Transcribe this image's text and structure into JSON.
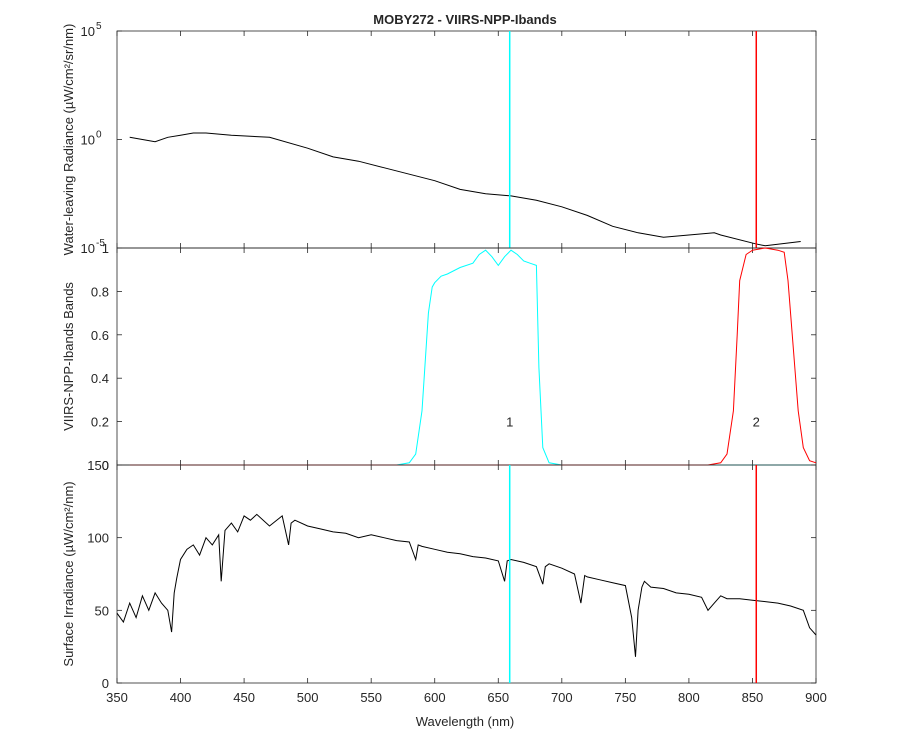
{
  "figure": {
    "title": "MOBY272 - VIIRS-NPP-Ibands",
    "xlabel": "Wavelength (nm)",
    "xticks": [
      350,
      400,
      450,
      500,
      550,
      600,
      650,
      700,
      750,
      800,
      850,
      900
    ],
    "xlim": [
      350,
      900
    ]
  },
  "chart_data": [
    {
      "type": "line",
      "panel": "top",
      "ylabel": "Water-leaving Radiance (µW/cm²/sr/nm)",
      "yscale": "log",
      "ylim_exponents": [
        -5,
        5
      ],
      "ytick_labels": [
        {
          "base": "10",
          "exp": "5",
          "value_exp": 5
        },
        {
          "base": "10",
          "exp": "0",
          "value_exp": 0
        },
        {
          "base": "10",
          "exp": "-5",
          "value_exp": -5
        }
      ],
      "series": [
        {
          "color": "#000000",
          "x": [
            360,
            370,
            380,
            390,
            400,
            410,
            420,
            440,
            470,
            500,
            520,
            540,
            560,
            580,
            600,
            620,
            640,
            660,
            680,
            700,
            720,
            740,
            760,
            780,
            800,
            820,
            825,
            852,
            860,
            888
          ],
          "y_exp": [
            0.1,
            0.0,
            -0.1,
            0.1,
            0.2,
            0.3,
            0.3,
            0.2,
            0.1,
            -0.4,
            -0.8,
            -1.0,
            -1.3,
            -1.6,
            -1.9,
            -2.3,
            -2.5,
            -2.6,
            -2.8,
            -3.1,
            -3.5,
            -4.0,
            -4.3,
            -4.5,
            -4.4,
            -4.3,
            -4.4,
            -4.8,
            -4.9,
            -4.7
          ]
        }
      ],
      "vlines": [
        {
          "x": 659,
          "color": "#00FFFF"
        },
        {
          "x": 853,
          "color": "#FF0000"
        }
      ]
    },
    {
      "type": "line",
      "panel": "middle",
      "ylabel": "VIIRS-NPP-Ibands Bands",
      "ylim": [
        0,
        1
      ],
      "yticks": [
        0,
        0.2,
        0.4,
        0.6,
        0.8,
        1
      ],
      "ytick_labels": [
        "0",
        "0.2",
        "0.4",
        "0.6",
        "0.8",
        "1"
      ],
      "series": [
        {
          "color": "#00FFFF",
          "x": [
            360,
            570,
            580,
            585,
            590,
            595,
            598,
            600,
            605,
            610,
            620,
            630,
            635,
            640,
            645,
            650,
            655,
            660,
            665,
            670,
            675,
            680,
            682,
            685,
            690,
            700,
            900
          ],
          "y": [
            0,
            0,
            0.01,
            0.05,
            0.25,
            0.7,
            0.82,
            0.84,
            0.87,
            0.88,
            0.91,
            0.93,
            0.97,
            0.99,
            0.96,
            0.92,
            0.96,
            0.99,
            0.97,
            0.94,
            0.93,
            0.92,
            0.45,
            0.08,
            0.01,
            0,
            0
          ]
        },
        {
          "color": "#FF0000",
          "x": [
            360,
            815,
            825,
            830,
            835,
            838,
            840,
            845,
            850,
            860,
            870,
            875,
            878,
            882,
            886,
            890,
            895,
            900
          ],
          "y": [
            0,
            0,
            0.01,
            0.05,
            0.25,
            0.6,
            0.85,
            0.97,
            0.99,
            1.0,
            0.99,
            0.98,
            0.85,
            0.55,
            0.25,
            0.08,
            0.02,
            0.01
          ]
        }
      ],
      "annotations": [
        {
          "text": "1",
          "x": 659,
          "y": 0.2
        },
        {
          "text": "2",
          "x": 853,
          "y": 0.2
        }
      ]
    },
    {
      "type": "line",
      "panel": "bottom",
      "ylabel": "Surface Irradiance (µW/cm²/nm)",
      "ylim": [
        0,
        150
      ],
      "yticks": [
        0,
        50,
        100,
        150
      ],
      "ytick_labels": [
        "0",
        "50",
        "100",
        "150"
      ],
      "series": [
        {
          "color": "#000000",
          "x": [
            350,
            355,
            360,
            365,
            370,
            375,
            380,
            385,
            390,
            393,
            395,
            397,
            400,
            405,
            410,
            415,
            420,
            425,
            430,
            432,
            435,
            440,
            445,
            450,
            455,
            460,
            470,
            480,
            485,
            487,
            490,
            500,
            510,
            520,
            530,
            540,
            550,
            560,
            570,
            580,
            585,
            587,
            590,
            600,
            610,
            620,
            630,
            640,
            650,
            655,
            657,
            660,
            670,
            680,
            685,
            687,
            690,
            700,
            710,
            715,
            718,
            720,
            730,
            740,
            750,
            755,
            758,
            760,
            763,
            765,
            770,
            780,
            790,
            800,
            810,
            815,
            820,
            825,
            830,
            840,
            850,
            860,
            870,
            880,
            890,
            895,
            900
          ],
          "y": [
            48,
            42,
            55,
            45,
            60,
            50,
            62,
            55,
            50,
            35,
            62,
            72,
            85,
            92,
            95,
            88,
            100,
            95,
            102,
            70,
            105,
            110,
            104,
            115,
            112,
            116,
            108,
            115,
            95,
            110,
            112,
            108,
            106,
            104,
            103,
            100,
            102,
            100,
            98,
            97,
            85,
            95,
            94,
            92,
            90,
            89,
            87,
            86,
            84,
            70,
            84,
            85,
            83,
            80,
            68,
            80,
            82,
            79,
            75,
            55,
            74,
            73,
            71,
            69,
            67,
            45,
            18,
            50,
            66,
            70,
            66,
            65,
            62,
            61,
            59,
            50,
            55,
            60,
            58,
            58,
            57,
            56,
            55,
            53,
            50,
            38,
            33
          ]
        }
      ],
      "vlines": [
        {
          "x": 659,
          "color": "#00FFFF"
        },
        {
          "x": 853,
          "color": "#FF0000"
        }
      ]
    }
  ]
}
